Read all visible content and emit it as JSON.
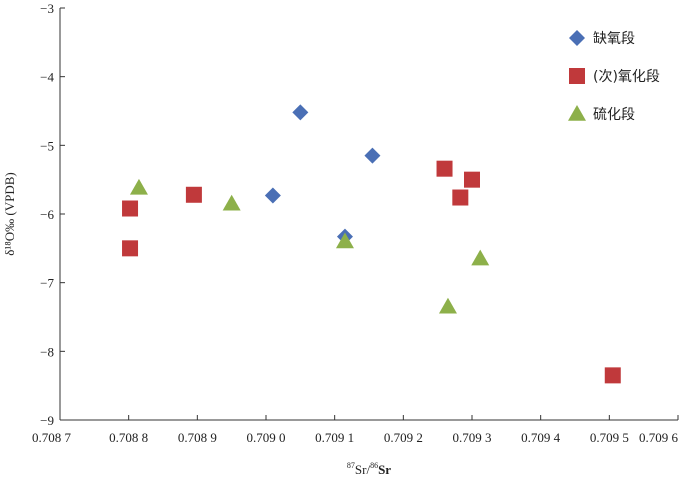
{
  "chart_data": {
    "type": "scatter",
    "title": "",
    "xlabel": {
      "sup1": "87",
      "mid": "Sr/",
      "sup2": "86",
      "end": "Sr"
    },
    "ylabel": "δ¹⁸O‰ (VPDB)",
    "xlim": [
      0.7087,
      0.7096
    ],
    "ylim": [
      -9,
      -3
    ],
    "xticks": [
      0.7087,
      0.7088,
      0.7089,
      0.709,
      0.7091,
      0.7092,
      0.7093,
      0.7094,
      0.7095,
      0.7096
    ],
    "xtick_labels": [
      "0.708 7",
      "0.708 8",
      "0.708 9",
      "0.709 0",
      "0.709 1",
      "0.709 2",
      "0.709 3",
      "0.709 4",
      "0.709 5",
      "0.709 6"
    ],
    "yticks": [
      -9,
      -8,
      -7,
      -6,
      -5,
      -4,
      -3
    ],
    "ytick_labels": [
      "−9",
      "−8",
      "−7",
      "−6",
      "−5",
      "−4",
      "−3"
    ],
    "grid": false,
    "legend_position": "top-right",
    "series": [
      {
        "name": "缺氧段",
        "marker": "diamond",
        "color": "#4a6fb5",
        "points": [
          [
            0.70901,
            -5.73
          ],
          [
            0.70905,
            -4.52
          ],
          [
            0.709115,
            -6.33
          ],
          [
            0.709155,
            -5.15
          ]
        ]
      },
      {
        "name": "(次)氧化段",
        "marker": "square",
        "color": "#c0393b",
        "points": [
          [
            0.708802,
            -5.92
          ],
          [
            0.708802,
            -6.5
          ],
          [
            0.708895,
            -5.72
          ],
          [
            0.70926,
            -5.34
          ],
          [
            0.709283,
            -5.76
          ],
          [
            0.7093,
            -5.5
          ],
          [
            0.709505,
            -8.35
          ]
        ]
      },
      {
        "name": "硫化段",
        "marker": "triangle",
        "color": "#8db04a",
        "points": [
          [
            0.708815,
            -5.62
          ],
          [
            0.70895,
            -5.85
          ],
          [
            0.709115,
            -6.4
          ],
          [
            0.709265,
            -7.35
          ],
          [
            0.709312,
            -6.65
          ]
        ]
      }
    ]
  }
}
